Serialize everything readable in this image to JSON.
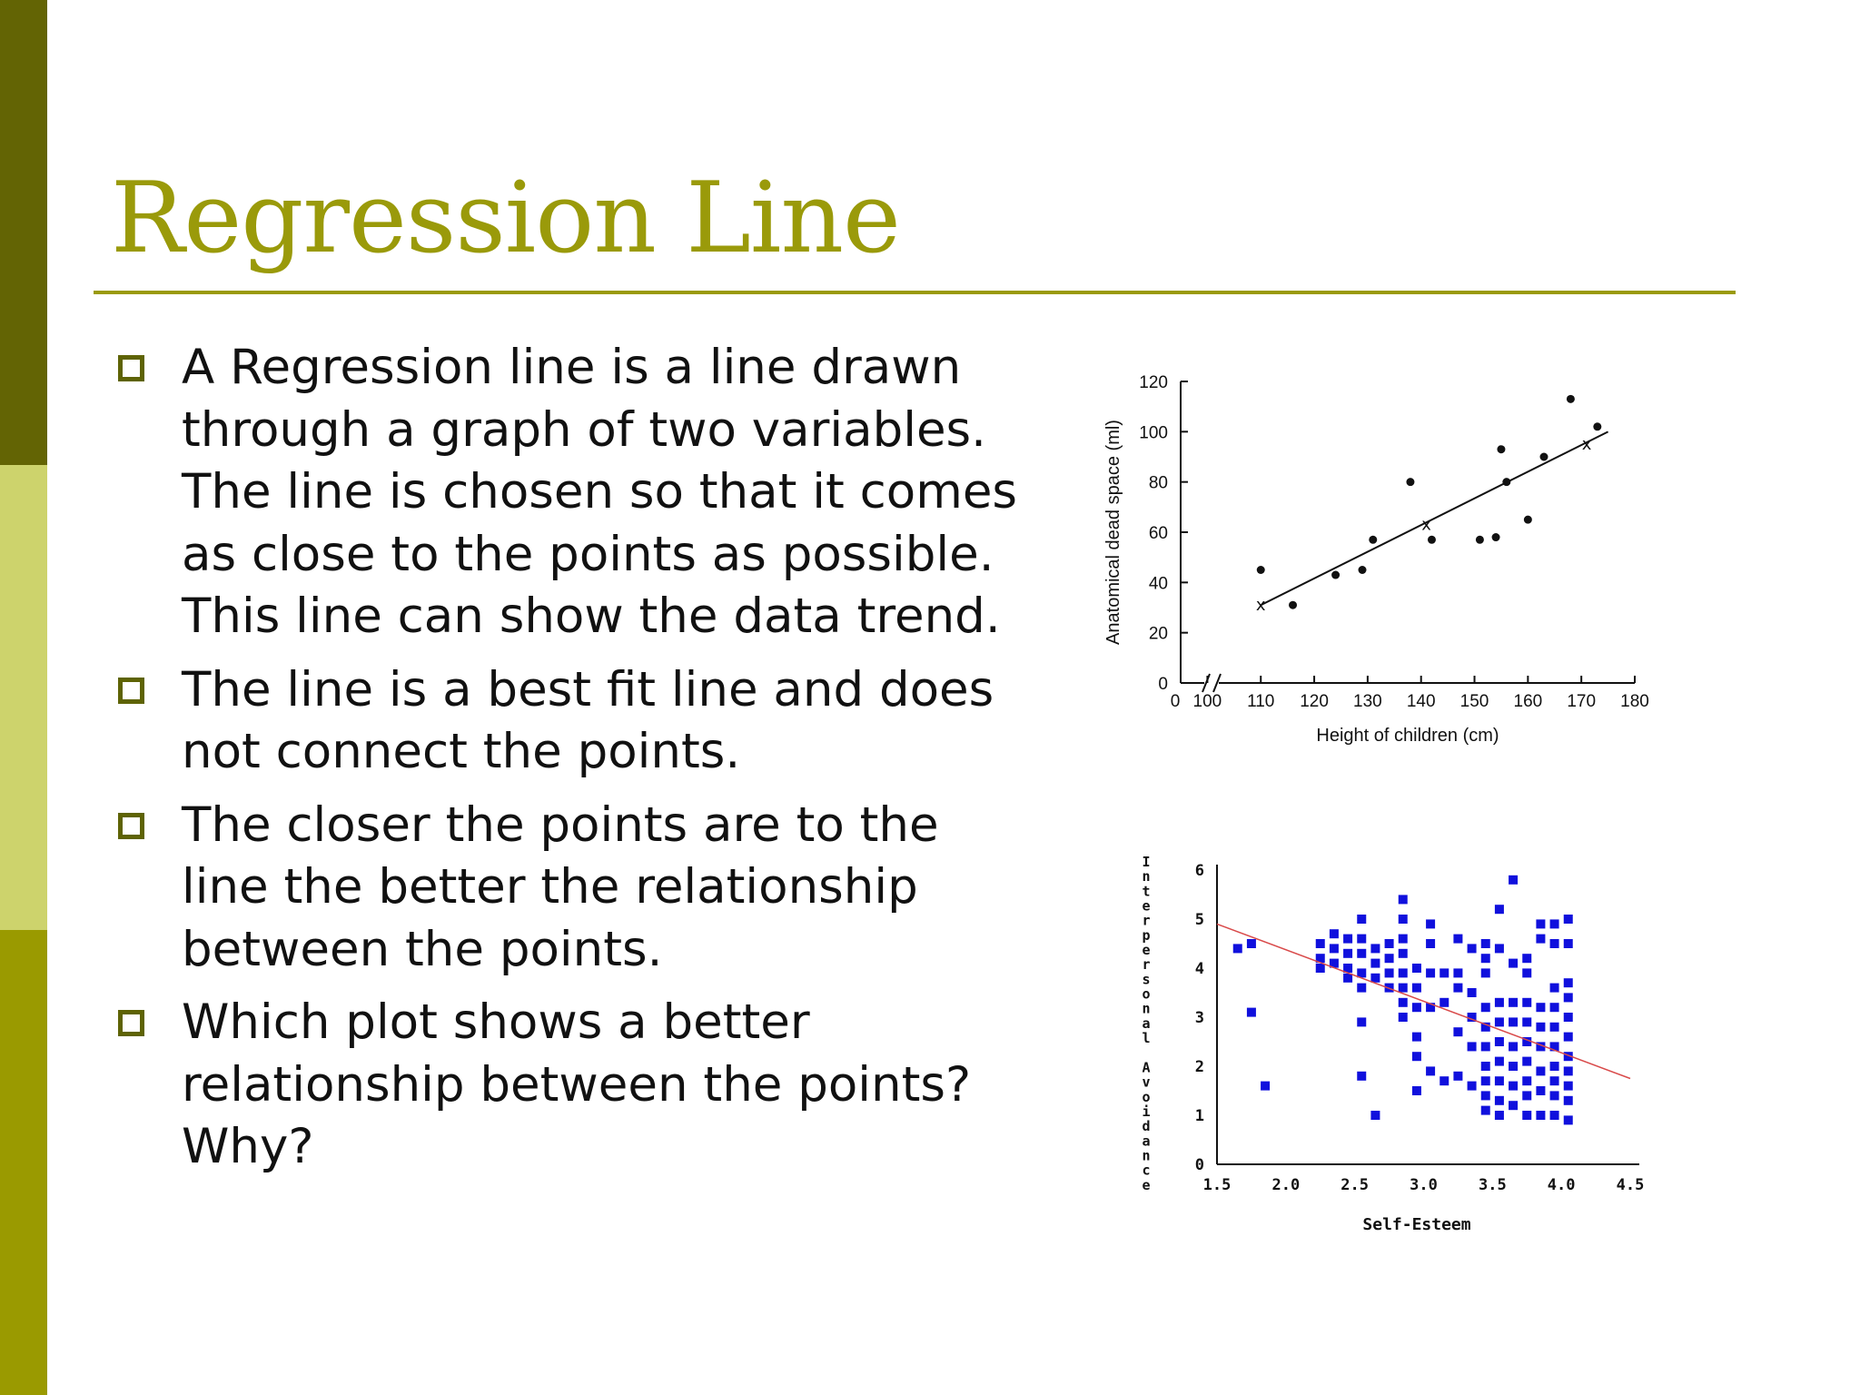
{
  "slide": {
    "title": "Regression Line",
    "colors": {
      "accent": "#9a9a0a",
      "bar_top": "#636404",
      "bar_mid": "#cdd36c",
      "bar_bottom": "#9a9a00",
      "bullet_border": "#5e6304",
      "plot2_points": "#1010dd",
      "plot2_line": "#d94a4a"
    },
    "bullets": [
      "A Regression line is a line drawn through a graph of two variables. The line is chosen so that it comes as close to the points as possible. This line can show the data trend.",
      "The line is a best fit line and does not connect the points.",
      "The closer the points are to the line the better the relationship between the points.",
      "Which plot shows a better relationship between the points? Why?"
    ]
  },
  "chart_data": [
    {
      "type": "scatter",
      "title": "",
      "xlabel": "Height of children (cm)",
      "ylabel": "Anatomical dead space (ml)",
      "x_ticks": [
        "0",
        "100",
        "110",
        "120",
        "130",
        "140",
        "150",
        "160",
        "170",
        "180"
      ],
      "y_ticks": [
        "0",
        "20",
        "40",
        "60",
        "80",
        "100",
        "120"
      ],
      "xlim": [
        95,
        180
      ],
      "ylim": [
        0,
        120
      ],
      "axis_break": true,
      "grid": false,
      "points": [
        {
          "x": 110,
          "y": 45
        },
        {
          "x": 116,
          "y": 31
        },
        {
          "x": 124,
          "y": 43
        },
        {
          "x": 129,
          "y": 45
        },
        {
          "x": 131,
          "y": 57
        },
        {
          "x": 138,
          "y": 80
        },
        {
          "x": 142,
          "y": 57
        },
        {
          "x": 151,
          "y": 57
        },
        {
          "x": 154,
          "y": 58
        },
        {
          "x": 155,
          "y": 93
        },
        {
          "x": 156,
          "y": 80
        },
        {
          "x": 160,
          "y": 65
        },
        {
          "x": 163,
          "y": 90
        },
        {
          "x": 168,
          "y": 113
        },
        {
          "x": 173,
          "y": 102
        }
      ],
      "line_markers": [
        {
          "x": 110,
          "y": 31
        },
        {
          "x": 141,
          "y": 63
        },
        {
          "x": 171,
          "y": 95
        }
      ],
      "regression_line": {
        "x1": 110,
        "y1": 31,
        "x2": 175,
        "y2": 100
      }
    },
    {
      "type": "scatter",
      "title": "",
      "xlabel": "Self-Esteem",
      "ylabel": "Interpersonal Avoidance",
      "x_ticks": [
        "1.5",
        "2.0",
        "2.5",
        "3.0",
        "3.5",
        "4.0",
        "4.5"
      ],
      "y_ticks": [
        "0",
        "1",
        "2",
        "3",
        "4",
        "5",
        "6"
      ],
      "xlim": [
        1.5,
        4.5
      ],
      "ylim": [
        0,
        6
      ],
      "grid": false,
      "points": [
        {
          "x": 1.65,
          "y": 4.4
        },
        {
          "x": 1.75,
          "y": 4.5
        },
        {
          "x": 1.75,
          "y": 3.1
        },
        {
          "x": 1.85,
          "y": 1.6
        },
        {
          "x": 2.25,
          "y": 4.5
        },
        {
          "x": 2.25,
          "y": 4.2
        },
        {
          "x": 2.25,
          "y": 4.0
        },
        {
          "x": 2.35,
          "y": 4.7
        },
        {
          "x": 2.35,
          "y": 4.4
        },
        {
          "x": 2.35,
          "y": 4.1
        },
        {
          "x": 2.45,
          "y": 4.6
        },
        {
          "x": 2.45,
          "y": 4.3
        },
        {
          "x": 2.45,
          "y": 4.0
        },
        {
          "x": 2.45,
          "y": 3.8
        },
        {
          "x": 2.55,
          "y": 5.0
        },
        {
          "x": 2.55,
          "y": 4.6
        },
        {
          "x": 2.55,
          "y": 4.3
        },
        {
          "x": 2.55,
          "y": 3.9
        },
        {
          "x": 2.55,
          "y": 3.6
        },
        {
          "x": 2.55,
          "y": 2.9
        },
        {
          "x": 2.55,
          "y": 1.8
        },
        {
          "x": 2.65,
          "y": 4.4
        },
        {
          "x": 2.65,
          "y": 4.1
        },
        {
          "x": 2.65,
          "y": 3.8
        },
        {
          "x": 2.65,
          "y": 1.0
        },
        {
          "x": 2.75,
          "y": 4.5
        },
        {
          "x": 2.75,
          "y": 4.2
        },
        {
          "x": 2.75,
          "y": 3.9
        },
        {
          "x": 2.75,
          "y": 3.6
        },
        {
          "x": 2.85,
          "y": 5.4
        },
        {
          "x": 2.85,
          "y": 5.0
        },
        {
          "x": 2.85,
          "y": 4.6
        },
        {
          "x": 2.85,
          "y": 4.3
        },
        {
          "x": 2.85,
          "y": 3.9
        },
        {
          "x": 2.85,
          "y": 3.6
        },
        {
          "x": 2.85,
          "y": 3.3
        },
        {
          "x": 2.85,
          "y": 3.0
        },
        {
          "x": 2.95,
          "y": 4.0
        },
        {
          "x": 2.95,
          "y": 3.6
        },
        {
          "x": 2.95,
          "y": 3.2
        },
        {
          "x": 2.95,
          "y": 2.6
        },
        {
          "x": 2.95,
          "y": 2.2
        },
        {
          "x": 2.95,
          "y": 1.5
        },
        {
          "x": 3.05,
          "y": 4.9
        },
        {
          "x": 3.05,
          "y": 4.5
        },
        {
          "x": 3.05,
          "y": 3.9
        },
        {
          "x": 3.05,
          "y": 3.2
        },
        {
          "x": 3.05,
          "y": 1.9
        },
        {
          "x": 3.15,
          "y": 3.9
        },
        {
          "x": 3.15,
          "y": 3.3
        },
        {
          "x": 3.15,
          "y": 1.7
        },
        {
          "x": 3.25,
          "y": 4.6
        },
        {
          "x": 3.25,
          "y": 3.9
        },
        {
          "x": 3.25,
          "y": 3.6
        },
        {
          "x": 3.25,
          "y": 2.7
        },
        {
          "x": 3.25,
          "y": 1.8
        },
        {
          "x": 3.35,
          "y": 4.4
        },
        {
          "x": 3.35,
          "y": 3.5
        },
        {
          "x": 3.35,
          "y": 3.0
        },
        {
          "x": 3.35,
          "y": 2.4
        },
        {
          "x": 3.35,
          "y": 1.6
        },
        {
          "x": 3.45,
          "y": 4.5
        },
        {
          "x": 3.45,
          "y": 4.2
        },
        {
          "x": 3.45,
          "y": 3.9
        },
        {
          "x": 3.45,
          "y": 3.2
        },
        {
          "x": 3.45,
          "y": 2.8
        },
        {
          "x": 3.45,
          "y": 2.4
        },
        {
          "x": 3.45,
          "y": 2.0
        },
        {
          "x": 3.45,
          "y": 1.7
        },
        {
          "x": 3.45,
          "y": 1.4
        },
        {
          "x": 3.45,
          "y": 1.1
        },
        {
          "x": 3.55,
          "y": 5.2
        },
        {
          "x": 3.55,
          "y": 4.4
        },
        {
          "x": 3.55,
          "y": 3.3
        },
        {
          "x": 3.55,
          "y": 2.9
        },
        {
          "x": 3.55,
          "y": 2.5
        },
        {
          "x": 3.55,
          "y": 2.1
        },
        {
          "x": 3.55,
          "y": 1.7
        },
        {
          "x": 3.55,
          "y": 1.3
        },
        {
          "x": 3.55,
          "y": 1.0
        },
        {
          "x": 3.65,
          "y": 5.8
        },
        {
          "x": 3.65,
          "y": 4.1
        },
        {
          "x": 3.65,
          "y": 3.3
        },
        {
          "x": 3.65,
          "y": 2.9
        },
        {
          "x": 3.65,
          "y": 2.4
        },
        {
          "x": 3.65,
          "y": 2.0
        },
        {
          "x": 3.65,
          "y": 1.6
        },
        {
          "x": 3.65,
          "y": 1.2
        },
        {
          "x": 3.75,
          "y": 4.2
        },
        {
          "x": 3.75,
          "y": 3.9
        },
        {
          "x": 3.75,
          "y": 3.3
        },
        {
          "x": 3.75,
          "y": 2.9
        },
        {
          "x": 3.75,
          "y": 2.5
        },
        {
          "x": 3.75,
          "y": 2.1
        },
        {
          "x": 3.75,
          "y": 1.7
        },
        {
          "x": 3.75,
          "y": 1.4
        },
        {
          "x": 3.75,
          "y": 1.0
        },
        {
          "x": 3.85,
          "y": 4.9
        },
        {
          "x": 3.85,
          "y": 4.6
        },
        {
          "x": 3.85,
          "y": 3.2
        },
        {
          "x": 3.85,
          "y": 2.8
        },
        {
          "x": 3.85,
          "y": 2.4
        },
        {
          "x": 3.85,
          "y": 1.9
        },
        {
          "x": 3.85,
          "y": 1.5
        },
        {
          "x": 3.85,
          "y": 1.0
        },
        {
          "x": 3.95,
          "y": 4.9
        },
        {
          "x": 3.95,
          "y": 4.5
        },
        {
          "x": 3.95,
          "y": 3.6
        },
        {
          "x": 3.95,
          "y": 3.2
        },
        {
          "x": 3.95,
          "y": 2.8
        },
        {
          "x": 3.95,
          "y": 2.4
        },
        {
          "x": 3.95,
          "y": 2.0
        },
        {
          "x": 3.95,
          "y": 1.7
        },
        {
          "x": 3.95,
          "y": 1.4
        },
        {
          "x": 3.95,
          "y": 1.0
        },
        {
          "x": 4.05,
          "y": 5.0
        },
        {
          "x": 4.05,
          "y": 4.5
        },
        {
          "x": 4.05,
          "y": 3.7
        },
        {
          "x": 4.05,
          "y": 3.4
        },
        {
          "x": 4.05,
          "y": 3.0
        },
        {
          "x": 4.05,
          "y": 2.6
        },
        {
          "x": 4.05,
          "y": 2.2
        },
        {
          "x": 4.05,
          "y": 1.9
        },
        {
          "x": 4.05,
          "y": 1.6
        },
        {
          "x": 4.05,
          "y": 1.3
        },
        {
          "x": 4.05,
          "y": 0.9
        }
      ],
      "regression_line": {
        "x1": 1.5,
        "y1": 4.9,
        "x2": 4.5,
        "y2": 1.75
      }
    }
  ]
}
